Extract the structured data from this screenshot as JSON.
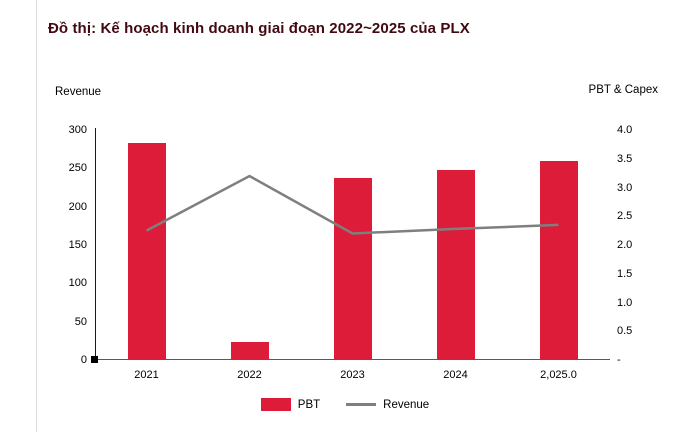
{
  "title": "Đồ thị: Kế hoạch kinh doanh giai đoạn 2022~2025 của PLX",
  "colors": {
    "title": "#420a10",
    "bar": "#dd1c39",
    "line": "#7f7f7f",
    "axis": "#1a1a1a"
  },
  "chart_data": {
    "type": "bar",
    "title": "Đồ thị: Kế hoạch kinh doanh giai đoạn 2022~2025 của PLX",
    "categories": [
      "2021",
      "2022",
      "2023",
      "2024",
      "2,025.0"
    ],
    "series": [
      {
        "name": "PBT",
        "type": "bar",
        "axis": "left",
        "color": "#dd1c39",
        "values": [
          283,
          23,
          238,
          248,
          260
        ]
      },
      {
        "name": "Revenue",
        "type": "line",
        "axis": "right",
        "color": "#7f7f7f",
        "values": [
          2.25,
          3.2,
          2.2,
          2.28,
          2.35
        ]
      }
    ],
    "left_axis": {
      "title": "Revenue",
      "min": 0,
      "max": 300,
      "ticks": [
        "0",
        "50",
        "100",
        "150",
        "200",
        "250",
        "300"
      ]
    },
    "right_axis": {
      "title": "PBT & Capex",
      "min": 0,
      "max": 4,
      "ticks": [
        "-",
        "0.5",
        "1.0",
        "1.5",
        "2.0",
        "2.5",
        "3.0",
        "3.5",
        "4.0"
      ]
    },
    "legend_position": "bottom",
    "grid": false
  }
}
